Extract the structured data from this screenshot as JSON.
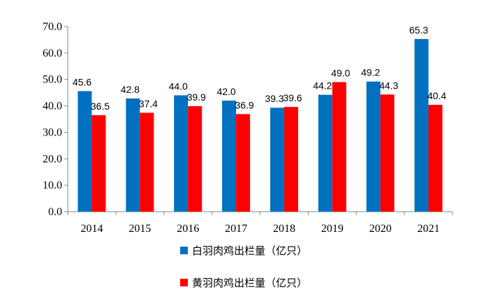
{
  "chart_data": {
    "type": "bar",
    "categories": [
      "2014",
      "2015",
      "2016",
      "2017",
      "2018",
      "2019",
      "2020",
      "2021"
    ],
    "series": [
      {
        "name": "白羽肉鸡出栏量（亿只）",
        "color": "#0070C0",
        "values": [
          45.6,
          42.8,
          44.0,
          42.0,
          39.3,
          44.2,
          49.2,
          65.3
        ]
      },
      {
        "name": "黄羽肉鸡出栏量（亿只）",
        "color": "#FF0000",
        "values": [
          36.5,
          37.4,
          39.9,
          36.9,
          39.6,
          49.0,
          44.3,
          40.4
        ]
      }
    ],
    "ylim": [
      0,
      70
    ],
    "yticks": [
      "0.0",
      "10.0",
      "20.0",
      "30.0",
      "40.0",
      "50.0",
      "60.0",
      "70.0"
    ],
    "title": "",
    "xlabel": "",
    "ylabel": "",
    "legend_position": "bottom",
    "grid": false
  }
}
